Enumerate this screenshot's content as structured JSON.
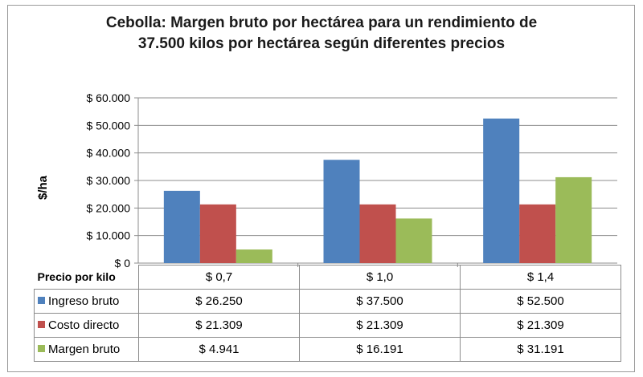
{
  "chart_data": {
    "type": "bar",
    "title_line1": "Cebolla: Margen bruto por hectárea para un rendimiento de",
    "title_line2": "37.500 kilos por hectárea según diferentes precios",
    "ylabel": "$/ha",
    "xlabel": "Precio por kilo",
    "categories": [
      "$ 0,7",
      "$ 1,0",
      "$ 1,4"
    ],
    "ylim": [
      0,
      60000
    ],
    "yticks": [
      0,
      10000,
      20000,
      30000,
      40000,
      50000,
      60000
    ],
    "ytick_labels": [
      "$ 0",
      "$ 10.000",
      "$ 20.000",
      "$ 30.000",
      "$ 40.000",
      "$ 50.000",
      "$ 60.000"
    ],
    "grid": true,
    "legend": "data-table",
    "series": [
      {
        "name": "Ingreso bruto",
        "color": "#4f81bd",
        "values": [
          26250,
          37500,
          52500
        ],
        "labels": [
          "$ 26.250",
          "$ 37.500",
          "$ 52.500"
        ]
      },
      {
        "name": "Costo directo",
        "color": "#c0504d",
        "values": [
          21309,
          21309,
          21309
        ],
        "labels": [
          "$ 21.309",
          "$ 21.309",
          "$ 21.309"
        ]
      },
      {
        "name": "Margen bruto",
        "color": "#9bbb59",
        "values": [
          4941,
          16191,
          31191
        ],
        "labels": [
          "$ 4.941",
          "$ 16.191",
          "$ 31.191"
        ]
      }
    ]
  }
}
